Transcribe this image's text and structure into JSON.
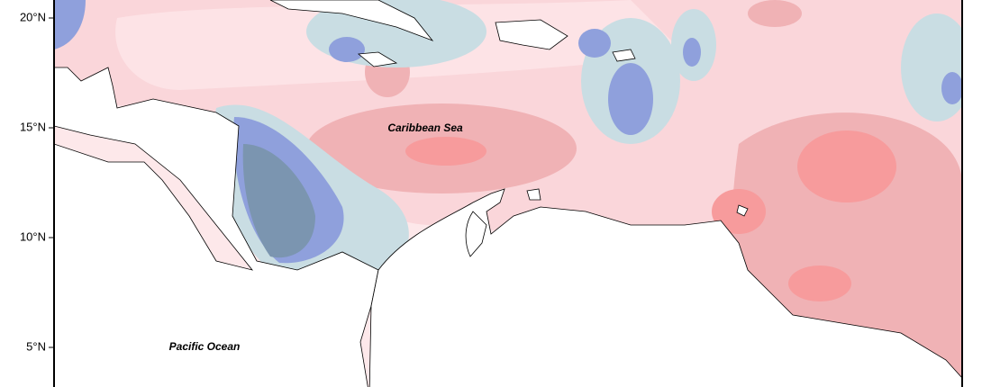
{
  "y_axis": {
    "ticks": [
      "20°N",
      "15°N",
      "10°N",
      "5°N"
    ]
  },
  "labels": {
    "sea": "Caribbean Sea",
    "ocean": "Pacific Ocean"
  }
}
